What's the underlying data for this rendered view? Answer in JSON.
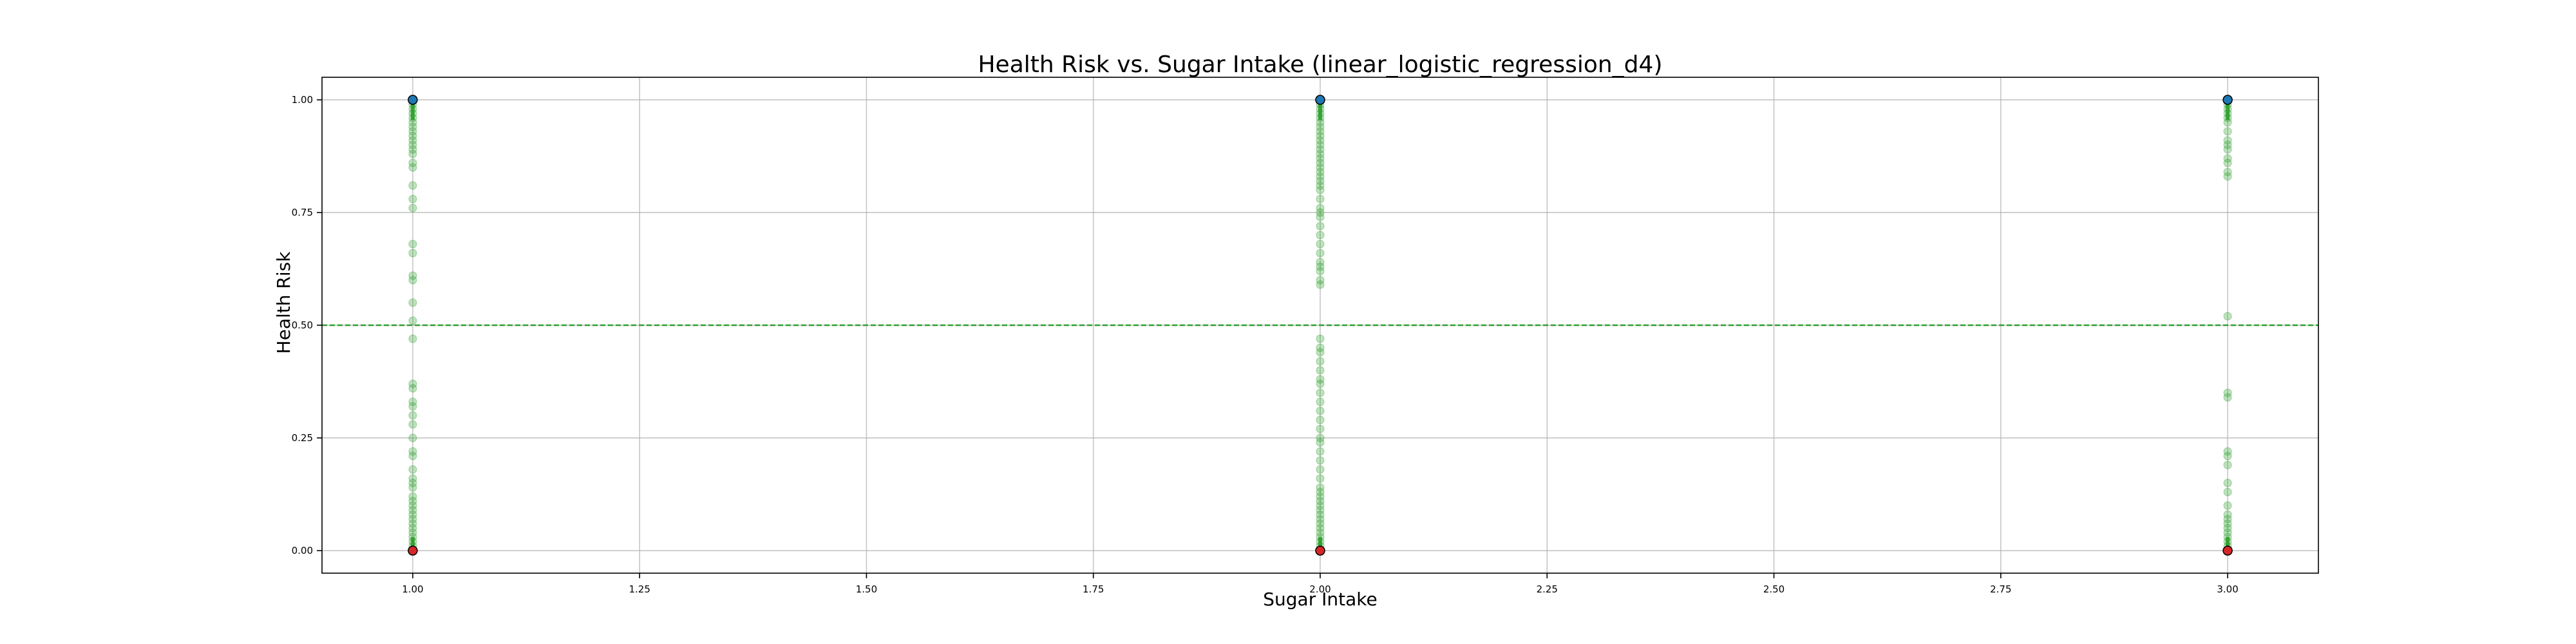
{
  "chart_data": {
    "type": "scatter",
    "title": "Health Risk vs. Sugar Intake (linear_logistic_regression_d4)",
    "xlabel": "Sugar Intake",
    "ylabel": "Health Risk",
    "xlim": [
      0.9,
      3.1
    ],
    "ylim": [
      -0.05,
      1.05
    ],
    "x_ticks": [
      1.0,
      1.25,
      1.5,
      1.75,
      2.0,
      2.25,
      2.5,
      2.75,
      3.0
    ],
    "x_tick_labels": [
      "1.00",
      "1.25",
      "1.50",
      "1.75",
      "2.00",
      "2.25",
      "2.50",
      "2.75",
      "3.00"
    ],
    "y_ticks": [
      0.0,
      0.25,
      0.5,
      0.75,
      1.0
    ],
    "y_tick_labels": [
      "0.00",
      "0.25",
      "0.50",
      "0.75",
      "1.00"
    ],
    "grid": true,
    "threshold": {
      "y": 0.5,
      "style": "dashed",
      "color": "#2ca02c"
    },
    "colors": {
      "positive_actual": "#1f77b4",
      "negative_actual": "#d62728",
      "predicted": "#2ca02c"
    },
    "series": [
      {
        "kind": "actual",
        "points": [
          {
            "x": 1,
            "y": 1
          },
          {
            "x": 1,
            "y": 0
          },
          {
            "x": 2,
            "y": 1
          },
          {
            "x": 2,
            "y": 0
          },
          {
            "x": 3,
            "y": 1
          },
          {
            "x": 3,
            "y": 0
          }
        ]
      },
      {
        "kind": "predicted",
        "points": [
          {
            "x": 1,
            "y": 0.99
          },
          {
            "x": 1,
            "y": 0.98
          },
          {
            "x": 1,
            "y": 0.97
          },
          {
            "x": 1,
            "y": 0.96
          },
          {
            "x": 1,
            "y": 0.95
          },
          {
            "x": 1,
            "y": 0.94
          },
          {
            "x": 1,
            "y": 0.93
          },
          {
            "x": 1,
            "y": 0.92
          },
          {
            "x": 1,
            "y": 0.91
          },
          {
            "x": 1,
            "y": 0.9
          },
          {
            "x": 1,
            "y": 0.89
          },
          {
            "x": 1,
            "y": 0.88
          },
          {
            "x": 1,
            "y": 0.86
          },
          {
            "x": 1,
            "y": 0.85
          },
          {
            "x": 1,
            "y": 0.81
          },
          {
            "x": 1,
            "y": 0.78
          },
          {
            "x": 1,
            "y": 0.76
          },
          {
            "x": 1,
            "y": 0.68
          },
          {
            "x": 1,
            "y": 0.66
          },
          {
            "x": 1,
            "y": 0.61
          },
          {
            "x": 1,
            "y": 0.6
          },
          {
            "x": 1,
            "y": 0.55
          },
          {
            "x": 1,
            "y": 0.51
          },
          {
            "x": 1,
            "y": 0.47
          },
          {
            "x": 1,
            "y": 0.37
          },
          {
            "x": 1,
            "y": 0.36
          },
          {
            "x": 1,
            "y": 0.33
          },
          {
            "x": 1,
            "y": 0.32
          },
          {
            "x": 1,
            "y": 0.3
          },
          {
            "x": 1,
            "y": 0.28
          },
          {
            "x": 1,
            "y": 0.25
          },
          {
            "x": 1,
            "y": 0.22
          },
          {
            "x": 1,
            "y": 0.21
          },
          {
            "x": 1,
            "y": 0.18
          },
          {
            "x": 1,
            "y": 0.16
          },
          {
            "x": 1,
            "y": 0.15
          },
          {
            "x": 1,
            "y": 0.14
          },
          {
            "x": 1,
            "y": 0.12
          },
          {
            "x": 1,
            "y": 0.11
          },
          {
            "x": 1,
            "y": 0.1
          },
          {
            "x": 1,
            "y": 0.09
          },
          {
            "x": 1,
            "y": 0.08
          },
          {
            "x": 1,
            "y": 0.07
          },
          {
            "x": 1,
            "y": 0.06
          },
          {
            "x": 1,
            "y": 0.05
          },
          {
            "x": 1,
            "y": 0.04
          },
          {
            "x": 1,
            "y": 0.03
          },
          {
            "x": 1,
            "y": 0.02
          },
          {
            "x": 1,
            "y": 0.01
          },
          {
            "x": 2,
            "y": 0.99
          },
          {
            "x": 2,
            "y": 0.98
          },
          {
            "x": 2,
            "y": 0.97
          },
          {
            "x": 2,
            "y": 0.96
          },
          {
            "x": 2,
            "y": 0.95
          },
          {
            "x": 2,
            "y": 0.94
          },
          {
            "x": 2,
            "y": 0.93
          },
          {
            "x": 2,
            "y": 0.92
          },
          {
            "x": 2,
            "y": 0.91
          },
          {
            "x": 2,
            "y": 0.9
          },
          {
            "x": 2,
            "y": 0.89
          },
          {
            "x": 2,
            "y": 0.88
          },
          {
            "x": 2,
            "y": 0.87
          },
          {
            "x": 2,
            "y": 0.86
          },
          {
            "x": 2,
            "y": 0.85
          },
          {
            "x": 2,
            "y": 0.84
          },
          {
            "x": 2,
            "y": 0.83
          },
          {
            "x": 2,
            "y": 0.82
          },
          {
            "x": 2,
            "y": 0.81
          },
          {
            "x": 2,
            "y": 0.8
          },
          {
            "x": 2,
            "y": 0.78
          },
          {
            "x": 2,
            "y": 0.76
          },
          {
            "x": 2,
            "y": 0.75
          },
          {
            "x": 2,
            "y": 0.74
          },
          {
            "x": 2,
            "y": 0.72
          },
          {
            "x": 2,
            "y": 0.7
          },
          {
            "x": 2,
            "y": 0.68
          },
          {
            "x": 2,
            "y": 0.66
          },
          {
            "x": 2,
            "y": 0.64
          },
          {
            "x": 2,
            "y": 0.63
          },
          {
            "x": 2,
            "y": 0.62
          },
          {
            "x": 2,
            "y": 0.6
          },
          {
            "x": 2,
            "y": 0.59
          },
          {
            "x": 2,
            "y": 0.47
          },
          {
            "x": 2,
            "y": 0.45
          },
          {
            "x": 2,
            "y": 0.44
          },
          {
            "x": 2,
            "y": 0.42
          },
          {
            "x": 2,
            "y": 0.4
          },
          {
            "x": 2,
            "y": 0.38
          },
          {
            "x": 2,
            "y": 0.37
          },
          {
            "x": 2,
            "y": 0.35
          },
          {
            "x": 2,
            "y": 0.33
          },
          {
            "x": 2,
            "y": 0.31
          },
          {
            "x": 2,
            "y": 0.29
          },
          {
            "x": 2,
            "y": 0.27
          },
          {
            "x": 2,
            "y": 0.25
          },
          {
            "x": 2,
            "y": 0.24
          },
          {
            "x": 2,
            "y": 0.22
          },
          {
            "x": 2,
            "y": 0.2
          },
          {
            "x": 2,
            "y": 0.18
          },
          {
            "x": 2,
            "y": 0.16
          },
          {
            "x": 2,
            "y": 0.14
          },
          {
            "x": 2,
            "y": 0.13
          },
          {
            "x": 2,
            "y": 0.12
          },
          {
            "x": 2,
            "y": 0.11
          },
          {
            "x": 2,
            "y": 0.1
          },
          {
            "x": 2,
            "y": 0.09
          },
          {
            "x": 2,
            "y": 0.08
          },
          {
            "x": 2,
            "y": 0.07
          },
          {
            "x": 2,
            "y": 0.06
          },
          {
            "x": 2,
            "y": 0.05
          },
          {
            "x": 2,
            "y": 0.04
          },
          {
            "x": 2,
            "y": 0.03
          },
          {
            "x": 2,
            "y": 0.02
          },
          {
            "x": 2,
            "y": 0.01
          },
          {
            "x": 3,
            "y": 0.99
          },
          {
            "x": 3,
            "y": 0.98
          },
          {
            "x": 3,
            "y": 0.97
          },
          {
            "x": 3,
            "y": 0.96
          },
          {
            "x": 3,
            "y": 0.95
          },
          {
            "x": 3,
            "y": 0.93
          },
          {
            "x": 3,
            "y": 0.91
          },
          {
            "x": 3,
            "y": 0.9
          },
          {
            "x": 3,
            "y": 0.89
          },
          {
            "x": 3,
            "y": 0.87
          },
          {
            "x": 3,
            "y": 0.86
          },
          {
            "x": 3,
            "y": 0.84
          },
          {
            "x": 3,
            "y": 0.83
          },
          {
            "x": 3,
            "y": 0.52
          },
          {
            "x": 3,
            "y": 0.35
          },
          {
            "x": 3,
            "y": 0.34
          },
          {
            "x": 3,
            "y": 0.22
          },
          {
            "x": 3,
            "y": 0.21
          },
          {
            "x": 3,
            "y": 0.19
          },
          {
            "x": 3,
            "y": 0.15
          },
          {
            "x": 3,
            "y": 0.13
          },
          {
            "x": 3,
            "y": 0.1
          },
          {
            "x": 3,
            "y": 0.08
          },
          {
            "x": 3,
            "y": 0.07
          },
          {
            "x": 3,
            "y": 0.06
          },
          {
            "x": 3,
            "y": 0.05
          },
          {
            "x": 3,
            "y": 0.04
          },
          {
            "x": 3,
            "y": 0.03
          },
          {
            "x": 3,
            "y": 0.02
          },
          {
            "x": 3,
            "y": 0.01
          }
        ]
      }
    ]
  }
}
